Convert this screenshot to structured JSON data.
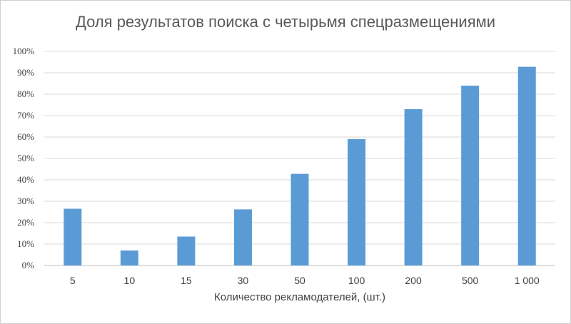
{
  "chart_data": {
    "type": "bar",
    "title": "Доля результатов поиска с четырьмя спецразмещениями",
    "xlabel": "Количество рекламодателей, (шт.)",
    "ylabel": "",
    "categories": [
      "5",
      "10",
      "15",
      "30",
      "50",
      "100",
      "200",
      "500",
      "1 000"
    ],
    "values": [
      26.5,
      7,
      13.5,
      26.2,
      42.8,
      59,
      73,
      84,
      92.8
    ],
    "ylim": [
      0,
      100
    ],
    "yticks": [
      "0%",
      "10%",
      "20%",
      "30%",
      "40%",
      "50%",
      "60%",
      "70%",
      "80%",
      "90%",
      "100%"
    ],
    "grid": true,
    "legend": "none",
    "bar_color": "#5b9bd5",
    "grid_color": "#d9d9d9",
    "axis_color": "#bfbfbf"
  }
}
